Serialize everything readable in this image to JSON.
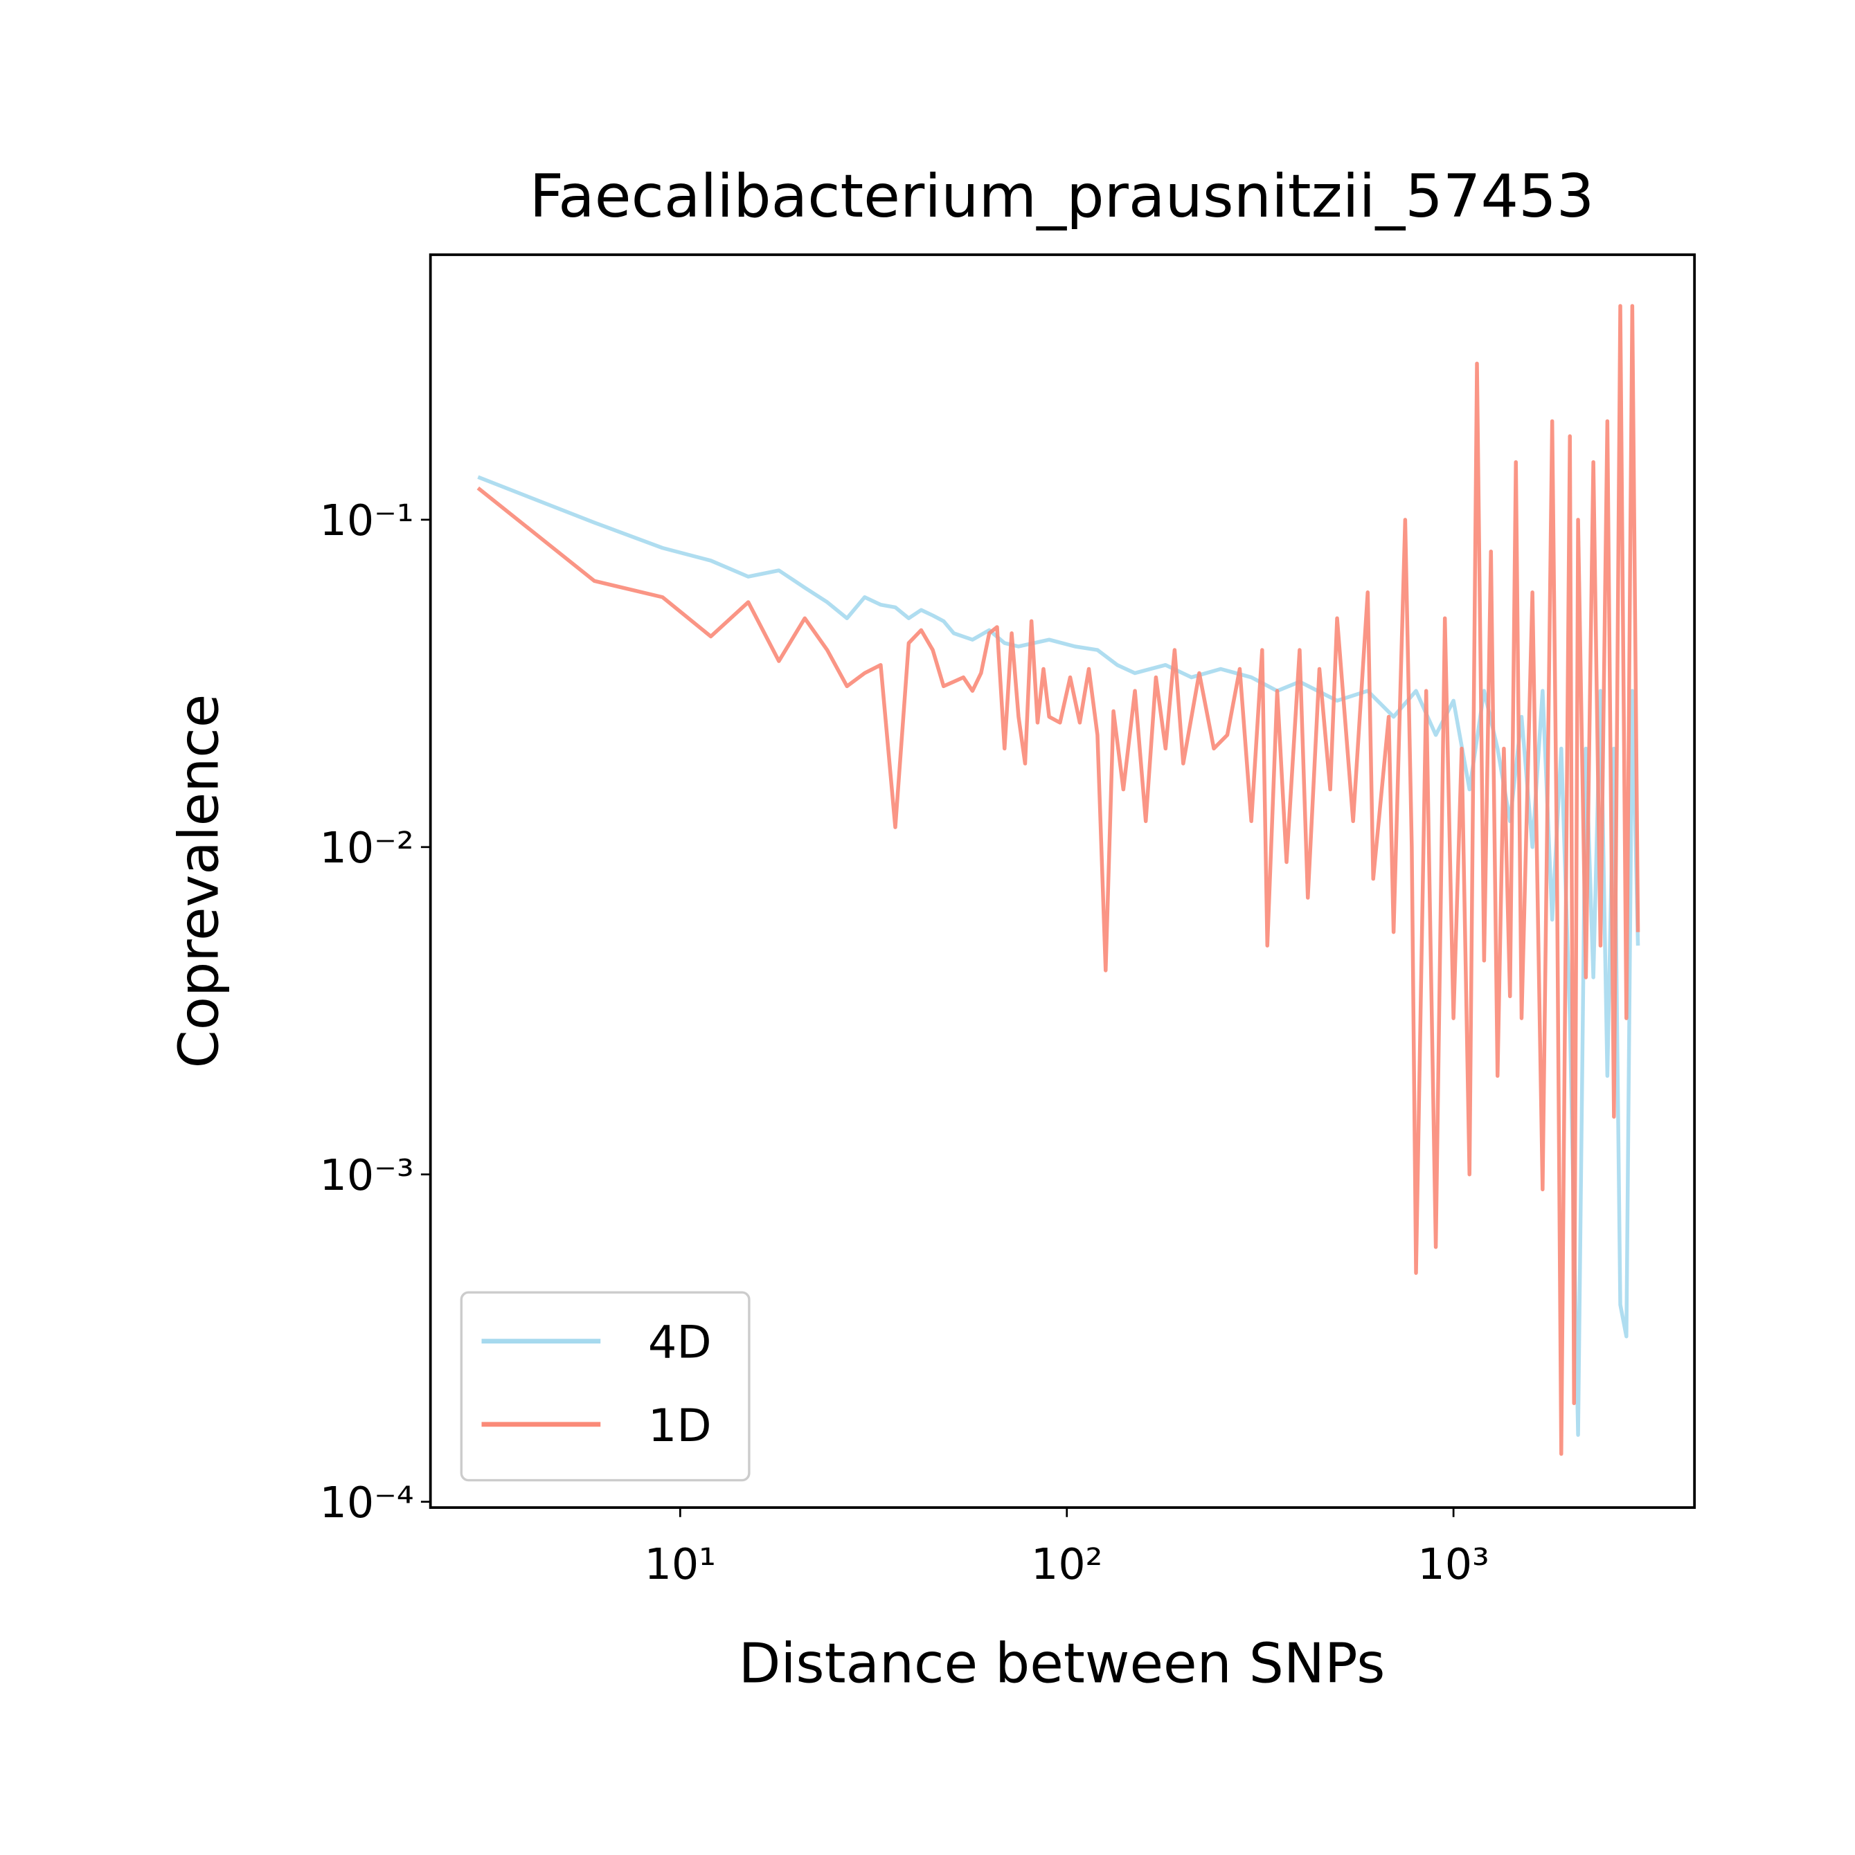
{
  "chart_data": {
    "type": "line",
    "title": "Faecalibacterium_prausnitzii_57453",
    "x_label": "Distance between SNPs",
    "y_label": "Coprevalence",
    "log_x": true,
    "log_y": true,
    "legend_position": "lower left",
    "xlim": [
      2.26,
      4200
    ],
    "ylim": [
      9.6e-05,
      0.645
    ],
    "xticks": [
      {
        "value": 10,
        "label": "10¹"
      },
      {
        "value": 100,
        "label": "10²"
      },
      {
        "value": 1000,
        "label": "10³"
      }
    ],
    "yticks": [
      {
        "value": 0.0001,
        "label": "10⁻⁴"
      },
      {
        "value": 0.001,
        "label": "10⁻³"
      },
      {
        "value": 0.01,
        "label": "10⁻²"
      },
      {
        "value": 0.1,
        "label": "10⁻¹"
      }
    ],
    "series": [
      {
        "name": "4D",
        "color": "#a6d9ee",
        "x": [
          3,
          6,
          9,
          12,
          15,
          18,
          21,
          24,
          27,
          30,
          33,
          36,
          39,
          42,
          45,
          48,
          51,
          57,
          63,
          69,
          75,
          90,
          105,
          120,
          135,
          150,
          180,
          210,
          250,
          300,
          350,
          400,
          500,
          600,
          700,
          800,
          900,
          1000,
          1100,
          1200,
          1300,
          1400,
          1500,
          1600,
          1700,
          1800,
          1900,
          2000,
          2100,
          2200,
          2300,
          2400,
          2500,
          2600,
          2700,
          2800,
          2900,
          3000
        ],
        "values": [
          0.135,
          0.098,
          0.082,
          0.075,
          0.067,
          0.07,
          0.062,
          0.056,
          0.05,
          0.058,
          0.055,
          0.054,
          0.05,
          0.053,
          0.051,
          0.049,
          0.045,
          0.043,
          0.046,
          0.042,
          0.041,
          0.043,
          0.041,
          0.04,
          0.036,
          0.034,
          0.036,
          0.033,
          0.035,
          0.033,
          0.03,
          0.032,
          0.028,
          0.03,
          0.025,
          0.03,
          0.022,
          0.028,
          0.015,
          0.03,
          0.02,
          0.012,
          0.025,
          0.01,
          0.03,
          0.006,
          0.02,
          0.003,
          0.00016,
          0.02,
          0.004,
          0.03,
          0.002,
          0.02,
          0.0004,
          0.00032,
          0.03,
          0.005
        ]
      },
      {
        "name": "1D",
        "color": "#fa8a78",
        "x": [
          3,
          6,
          9,
          12,
          15,
          18,
          21,
          24,
          27,
          30,
          33,
          36,
          39,
          42,
          45,
          48,
          51,
          54,
          57,
          60,
          63,
          66,
          69,
          72,
          75,
          78,
          81,
          84,
          87,
          90,
          96,
          102,
          108,
          114,
          120,
          126,
          132,
          140,
          150,
          160,
          170,
          180,
          190,
          200,
          220,
          240,
          260,
          280,
          300,
          320,
          330,
          350,
          370,
          400,
          420,
          450,
          480,
          500,
          550,
          600,
          620,
          680,
          700,
          750,
          780,
          800,
          850,
          900,
          950,
          1000,
          1050,
          1100,
          1150,
          1200,
          1250,
          1300,
          1350,
          1400,
          1450,
          1500,
          1600,
          1700,
          1800,
          1850,
          1900,
          2000,
          2050,
          2100,
          2200,
          2300,
          2400,
          2500,
          2600,
          2700,
          2800,
          2900,
          3000
        ],
        "values": [
          0.125,
          0.065,
          0.058,
          0.044,
          0.056,
          0.037,
          0.05,
          0.04,
          0.031,
          0.034,
          0.036,
          0.0115,
          0.042,
          0.046,
          0.04,
          0.031,
          0.032,
          0.033,
          0.03,
          0.034,
          0.045,
          0.047,
          0.02,
          0.045,
          0.025,
          0.018,
          0.049,
          0.024,
          0.035,
          0.025,
          0.024,
          0.033,
          0.024,
          0.035,
          0.022,
          0.0042,
          0.026,
          0.015,
          0.03,
          0.012,
          0.033,
          0.02,
          0.04,
          0.018,
          0.034,
          0.02,
          0.022,
          0.035,
          0.012,
          0.04,
          0.005,
          0.03,
          0.009,
          0.04,
          0.007,
          0.035,
          0.015,
          0.05,
          0.012,
          0.06,
          0.008,
          0.025,
          0.0055,
          0.1,
          0.01,
          0.0005,
          0.03,
          0.0006,
          0.05,
          0.003,
          0.02,
          0.001,
          0.3,
          0.0045,
          0.08,
          0.002,
          0.02,
          0.0035,
          0.15,
          0.003,
          0.06,
          0.0009,
          0.2,
          0.01,
          0.00014,
          0.18,
          0.0002,
          0.1,
          0.004,
          0.15,
          0.005,
          0.2,
          0.0015,
          0.45,
          0.003,
          0.45,
          0.0055
        ]
      }
    ]
  }
}
